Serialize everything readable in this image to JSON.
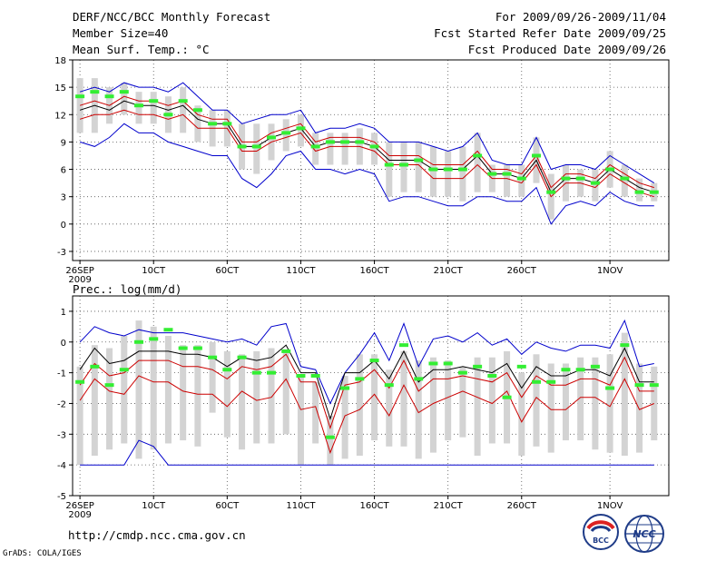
{
  "header": {
    "title": "DERF/NCC/BCC Monthly Forecast",
    "member_size": "Member Size=40",
    "variable_top": "Mean Surf. Temp.: °C",
    "period": "For 2009/09/26-2009/11/04",
    "refer_date": "Fcst Started Refer Date 2009/09/25",
    "produced_date": "Fcst Produced Date 2009/09/26"
  },
  "variable_bottom": "Prec.: log(mm/d)",
  "footer": {
    "url": "http://cmdp.ncc.cma.gov.cn",
    "grads": "GrADS: COLA/IGES"
  },
  "logos": {
    "bcc": "BCC",
    "ncc": "NCC"
  },
  "colors": {
    "band": "#d3d3d3",
    "ensemble_mean": "#000000",
    "spread": "#cc0000",
    "extreme": "#0000cc",
    "observed": "#33ee33"
  },
  "chart_data": [
    {
      "type": "line",
      "title": "Mean Surf. Temp.: °C",
      "x_tick_labels": [
        "26SEP",
        "10CT",
        "60CT",
        "110CT",
        "160CT",
        "210CT",
        "260CT",
        "1NOV"
      ],
      "x_tick_days": [
        1,
        6,
        11,
        16,
        21,
        26,
        31,
        37
      ],
      "year_label": "2009",
      "days": 40,
      "ylim": [
        -4,
        18
      ],
      "y_ticks": [
        -3,
        0,
        3,
        6,
        9,
        12,
        15,
        18
      ],
      "series": [
        {
          "name": "ensemble mean",
          "values": [
            12.5,
            13,
            12.5,
            13.5,
            13,
            13,
            12.5,
            13,
            11.5,
            11,
            11,
            8.5,
            8.5,
            9.5,
            10,
            10.5,
            8.5,
            9,
            9,
            9,
            8.5,
            7,
            7,
            7,
            6,
            6,
            6,
            7.5,
            5.5,
            5.5,
            5,
            7,
            3.5,
            5,
            5,
            4.5,
            6,
            5,
            4,
            3.5
          ]
        },
        {
          "name": "upper spread",
          "values": [
            13,
            13.5,
            13,
            14,
            13.5,
            13.5,
            13,
            13.5,
            12,
            11.5,
            11.5,
            9,
            9,
            10,
            10.5,
            11,
            9,
            9.5,
            9.5,
            9.5,
            9,
            7.5,
            7.5,
            7.5,
            6.5,
            6.5,
            6.5,
            8,
            6,
            6,
            5.5,
            7.5,
            4,
            5.5,
            5.5,
            5,
            6.5,
            5.5,
            4.5,
            4
          ]
        },
        {
          "name": "lower spread",
          "values": [
            11.5,
            12,
            12,
            12.5,
            12,
            12,
            11.5,
            12,
            10.5,
            10.5,
            10.5,
            8,
            8,
            9,
            9.5,
            10,
            8,
            8.5,
            8.5,
            8.5,
            8,
            6.5,
            6.5,
            6.5,
            5,
            5,
            5,
            6.5,
            5,
            5,
            4.5,
            6.5,
            3,
            4.5,
            4.5,
            4,
            5.5,
            4.5,
            3.5,
            3
          ]
        },
        {
          "name": "maximum",
          "values": [
            14.5,
            15,
            14.5,
            15.5,
            15,
            15,
            14.5,
            15.5,
            14,
            12.5,
            12.5,
            11,
            11.5,
            12,
            12,
            12.5,
            10,
            10.5,
            10.5,
            11,
            10.5,
            9,
            9,
            9,
            8.5,
            8,
            8.5,
            10,
            7,
            6.5,
            6.5,
            9.5,
            6,
            6.5,
            6.5,
            6,
            7.5,
            6.5,
            5.5,
            4.5
          ]
        },
        {
          "name": "minimum",
          "values": [
            9,
            8.5,
            9.5,
            11,
            10,
            10,
            9,
            8.5,
            8,
            7.5,
            7.5,
            5,
            4,
            5.5,
            7.5,
            8,
            6,
            6,
            5.5,
            6,
            5.5,
            2.5,
            3,
            3,
            2.5,
            2,
            2,
            3,
            3,
            2.5,
            2.5,
            4,
            0,
            2,
            2.5,
            2,
            3.5,
            2.5,
            2,
            2
          ]
        },
        {
          "name": "ensemble range low",
          "values": [
            10,
            10,
            11,
            12,
            11,
            11,
            10,
            10,
            9,
            8.5,
            8.5,
            6,
            5.5,
            7,
            8,
            8.5,
            6.5,
            6.5,
            6.5,
            6.5,
            6.5,
            3,
            3.5,
            3.5,
            3,
            3,
            2.5,
            3.5,
            3.5,
            3,
            3,
            4.5,
            0.5,
            2.5,
            3,
            2.5,
            4,
            3,
            2.5,
            2.5
          ]
        },
        {
          "name": "ensemble range high",
          "values": [
            16,
            16,
            15,
            15.5,
            14.5,
            14.5,
            14,
            15,
            13,
            12.5,
            12.5,
            11,
            11,
            11,
            11.5,
            12,
            10,
            10,
            10,
            10.5,
            10,
            9,
            9,
            9,
            8.5,
            8,
            8.5,
            10,
            6.5,
            6.5,
            6.5,
            9.5,
            5.5,
            6.5,
            6,
            6,
            8,
            6.5,
            5,
            4.5
          ]
        },
        {
          "name": "observed",
          "values": [
            14,
            14.5,
            14,
            14.5,
            13,
            13.5,
            12,
            13.5,
            12.5,
            11,
            11,
            8.5,
            8.5,
            9.5,
            10,
            10.5,
            8.5,
            9,
            9,
            9,
            8.5,
            6.5,
            6.5,
            7,
            6,
            6,
            6,
            7.5,
            5.5,
            5.5,
            5,
            7.5,
            3.5,
            5,
            5,
            4.5,
            6,
            5,
            3.5,
            3.5
          ]
        }
      ]
    },
    {
      "type": "line",
      "title": "Prec.: log(mm/d)",
      "x_tick_labels": [
        "26SEP",
        "10CT",
        "60CT",
        "110CT",
        "160CT",
        "210CT",
        "260CT",
        "1NOV"
      ],
      "x_tick_days": [
        1,
        6,
        11,
        16,
        21,
        26,
        31,
        37
      ],
      "year_label": "2009",
      "days": 40,
      "ylim": [
        -5,
        1.5
      ],
      "y_ticks": [
        -5,
        -4,
        -3,
        -2,
        -1,
        0,
        1
      ],
      "series": [
        {
          "name": "ensemble mean",
          "values": [
            -0.9,
            -0.2,
            -0.7,
            -0.6,
            -0.3,
            -0.3,
            -0.3,
            -0.4,
            -0.4,
            -0.5,
            -0.8,
            -0.5,
            -0.6,
            -0.5,
            -0.1,
            -1,
            -1,
            -2.5,
            -1,
            -1,
            -0.6,
            -1.2,
            -0.3,
            -1.3,
            -0.9,
            -0.9,
            -0.8,
            -0.9,
            -1,
            -0.7,
            -1.5,
            -0.8,
            -1.1,
            -1.1,
            -0.9,
            -0.9,
            -1.1,
            -0.2,
            -1.3,
            -1.3
          ]
        },
        {
          "name": "upper spread",
          "values": [
            -1.4,
            -0.7,
            -1.1,
            -1,
            -0.6,
            -0.6,
            -0.6,
            -0.8,
            -0.8,
            -0.9,
            -1.2,
            -0.8,
            -0.9,
            -0.8,
            -0.4,
            -1.3,
            -1.3,
            -2.8,
            -1.4,
            -1.3,
            -0.9,
            -1.5,
            -0.6,
            -1.6,
            -1.2,
            -1.2,
            -1.1,
            -1.2,
            -1.3,
            -1,
            -1.8,
            -1.1,
            -1.4,
            -1.4,
            -1.2,
            -1.2,
            -1.4,
            -0.5,
            -1.6,
            -1.6
          ]
        },
        {
          "name": "lower spread",
          "values": [
            -1.9,
            -1.2,
            -1.6,
            -1.7,
            -1.1,
            -1.3,
            -1.3,
            -1.6,
            -1.7,
            -1.7,
            -2.1,
            -1.6,
            -1.9,
            -1.8,
            -1.2,
            -2.2,
            -2.1,
            -3.6,
            -2.4,
            -2.2,
            -1.7,
            -2.4,
            -1.4,
            -2.3,
            -2,
            -1.8,
            -1.6,
            -1.8,
            -2,
            -1.6,
            -2.6,
            -1.8,
            -2.2,
            -2.2,
            -1.8,
            -1.8,
            -2.1,
            -1.2,
            -2.2,
            -2
          ]
        },
        {
          "name": "maximum",
          "values": [
            0,
            0.5,
            0.3,
            0.2,
            0.4,
            0.3,
            0.3,
            0.3,
            0.2,
            0.1,
            0,
            0.1,
            -0.1,
            0.5,
            0.6,
            -0.8,
            -0.9,
            -2,
            -1,
            -0.4,
            0.3,
            -0.6,
            0.6,
            -0.8,
            0.1,
            0.2,
            0,
            0.3,
            -0.1,
            0.1,
            -0.4,
            0,
            -0.2,
            -0.3,
            -0.1,
            -0.1,
            -0.2,
            0.7,
            -0.8,
            -0.7
          ]
        },
        {
          "name": "minimum",
          "values": [
            -4,
            -4,
            -4,
            -4,
            -3.2,
            -3.4,
            -4,
            -4,
            -4,
            -4,
            -4,
            -4,
            -4,
            -4,
            -4,
            -4,
            -4,
            -4,
            -4,
            -4,
            -4,
            -4,
            -4,
            -4,
            -4,
            -4,
            -4,
            -4,
            -4,
            -4,
            -4,
            -4,
            -4,
            -4,
            -4,
            -4,
            -4,
            -4,
            -4,
            -4
          ]
        },
        {
          "name": "ensemble range low",
          "values": [
            -4,
            -3.7,
            -3.5,
            -3.3,
            -3.8,
            -3.5,
            -3.3,
            -3.2,
            -3.4,
            -2.3,
            -3.1,
            -3.5,
            -3.3,
            -3.3,
            -3,
            -4,
            -3.3,
            -4,
            -3.8,
            -3.7,
            -3.2,
            -3.4,
            -3.4,
            -3.8,
            -3.6,
            -3.2,
            -3.1,
            -3.7,
            -3.3,
            -3.3,
            -3.7,
            -3.4,
            -3.6,
            -3.2,
            -3.2,
            -3.5,
            -3.6,
            -3.7,
            -3.6,
            -3.2
          ]
        },
        {
          "name": "ensemble range high",
          "values": [
            -0.8,
            -0.1,
            -0.2,
            0.2,
            0.7,
            0.5,
            0.2,
            -0.1,
            -0.1,
            0,
            -0.3,
            -0.4,
            -0.3,
            -0.2,
            -0.3,
            -1.1,
            -1.3,
            -2.4,
            -1.1,
            -0.4,
            -0.4,
            -0.9,
            -0.3,
            -0.6,
            -0.5,
            -0.6,
            -0.8,
            -0.5,
            -0.5,
            -0.3,
            -1,
            -0.4,
            -0.7,
            -0.7,
            -0.5,
            -0.5,
            -0.4,
            0.3,
            -0.7,
            -0.8
          ]
        },
        {
          "name": "observed",
          "values": [
            -1.3,
            -0.8,
            -1.4,
            -0.9,
            0,
            0.1,
            0.4,
            -0.2,
            -0.2,
            -0.5,
            -0.9,
            -0.5,
            -1,
            -1,
            -0.3,
            -1.1,
            -1.1,
            -3.1,
            -1.5,
            -1.2,
            -0.6,
            -1.4,
            -0.1,
            -1.2,
            -0.7,
            -0.7,
            -1,
            -0.8,
            -1.1,
            -1.8,
            -0.8,
            -1.3,
            -1.3,
            -0.9,
            -0.9,
            -0.8,
            -1.5,
            -0.1,
            -1.4,
            -1.4
          ]
        }
      ]
    }
  ]
}
